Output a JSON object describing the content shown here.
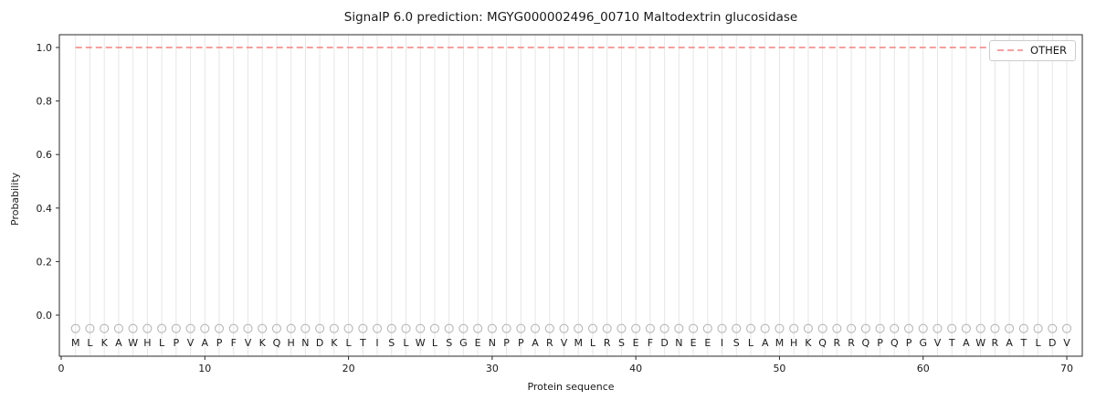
{
  "chart_data": {
    "type": "line",
    "title": "SignalP 6.0 prediction: MGYG000002496_00710 Maltodextrin glucosidase",
    "xlabel": "Protein sequence",
    "ylabel": "Probability",
    "x_ticks": [
      0,
      10,
      20,
      30,
      40,
      50,
      60,
      70
    ],
    "y_ticks": [
      0.0,
      0.2,
      0.4,
      0.6,
      0.8,
      1.0
    ],
    "xlim": [
      -0.13,
      71.1
    ],
    "ylim": [
      -0.155,
      1.05
    ],
    "grid": "vertical line at every residue position",
    "legend_position": "upper right",
    "colors": {
      "other_line": "#f08080",
      "gridline": "#e6e6e6",
      "spine": "#2a2a2a",
      "residue_marker": "#b8b8b8"
    },
    "residues": [
      "M",
      "L",
      "K",
      "A",
      "W",
      "H",
      "L",
      "P",
      "V",
      "A",
      "P",
      "F",
      "V",
      "K",
      "Q",
      "H",
      "N",
      "D",
      "K",
      "L",
      "T",
      "I",
      "S",
      "L",
      "W",
      "L",
      "S",
      "G",
      "E",
      "N",
      "P",
      "P",
      "A",
      "R",
      "V",
      "M",
      "L",
      "R",
      "S",
      "E",
      "F",
      "D",
      "N",
      "E",
      "E",
      "I",
      "S",
      "L",
      "A",
      "M",
      "H",
      "K",
      "Q",
      "R",
      "R",
      "Q",
      "P",
      "Q",
      "P",
      "G",
      "V",
      "T",
      "A",
      "W",
      "R",
      "A",
      "T",
      "L",
      "D",
      "V"
    ],
    "series": [
      {
        "name": "OTHER",
        "style": "dashed",
        "color": "#f08080",
        "x": [
          1,
          2,
          3,
          4,
          5,
          6,
          7,
          8,
          9,
          10,
          11,
          12,
          13,
          14,
          15,
          16,
          17,
          18,
          19,
          20,
          21,
          22,
          23,
          24,
          25,
          26,
          27,
          28,
          29,
          30,
          31,
          32,
          33,
          34,
          35,
          36,
          37,
          38,
          39,
          40,
          41,
          42,
          43,
          44,
          45,
          46,
          47,
          48,
          49,
          50,
          51,
          52,
          53,
          54,
          55,
          56,
          57,
          58,
          59,
          60,
          61,
          62,
          63,
          64,
          65,
          66,
          67,
          68,
          69,
          70
        ],
        "values": [
          1.0,
          1.0,
          1.0,
          1.0,
          1.0,
          1.0,
          1.0,
          1.0,
          1.0,
          1.0,
          1.0,
          1.0,
          1.0,
          1.0,
          1.0,
          1.0,
          1.0,
          1.0,
          1.0,
          1.0,
          1.0,
          1.0,
          1.0,
          1.0,
          1.0,
          1.0,
          1.0,
          1.0,
          1.0,
          1.0,
          1.0,
          1.0,
          1.0,
          1.0,
          1.0,
          1.0,
          1.0,
          1.0,
          1.0,
          1.0,
          1.0,
          1.0,
          1.0,
          1.0,
          1.0,
          1.0,
          1.0,
          1.0,
          1.0,
          1.0,
          1.0,
          1.0,
          1.0,
          1.0,
          1.0,
          1.0,
          1.0,
          1.0,
          1.0,
          1.0,
          1.0,
          1.0,
          1.0,
          1.0,
          1.0,
          1.0,
          1.0,
          1.0,
          1.0,
          1.0
        ]
      }
    ],
    "residue_marker": {
      "shape": "open-circle",
      "y": -0.05
    },
    "legend": {
      "entries": [
        {
          "label": "OTHER"
        }
      ]
    }
  }
}
